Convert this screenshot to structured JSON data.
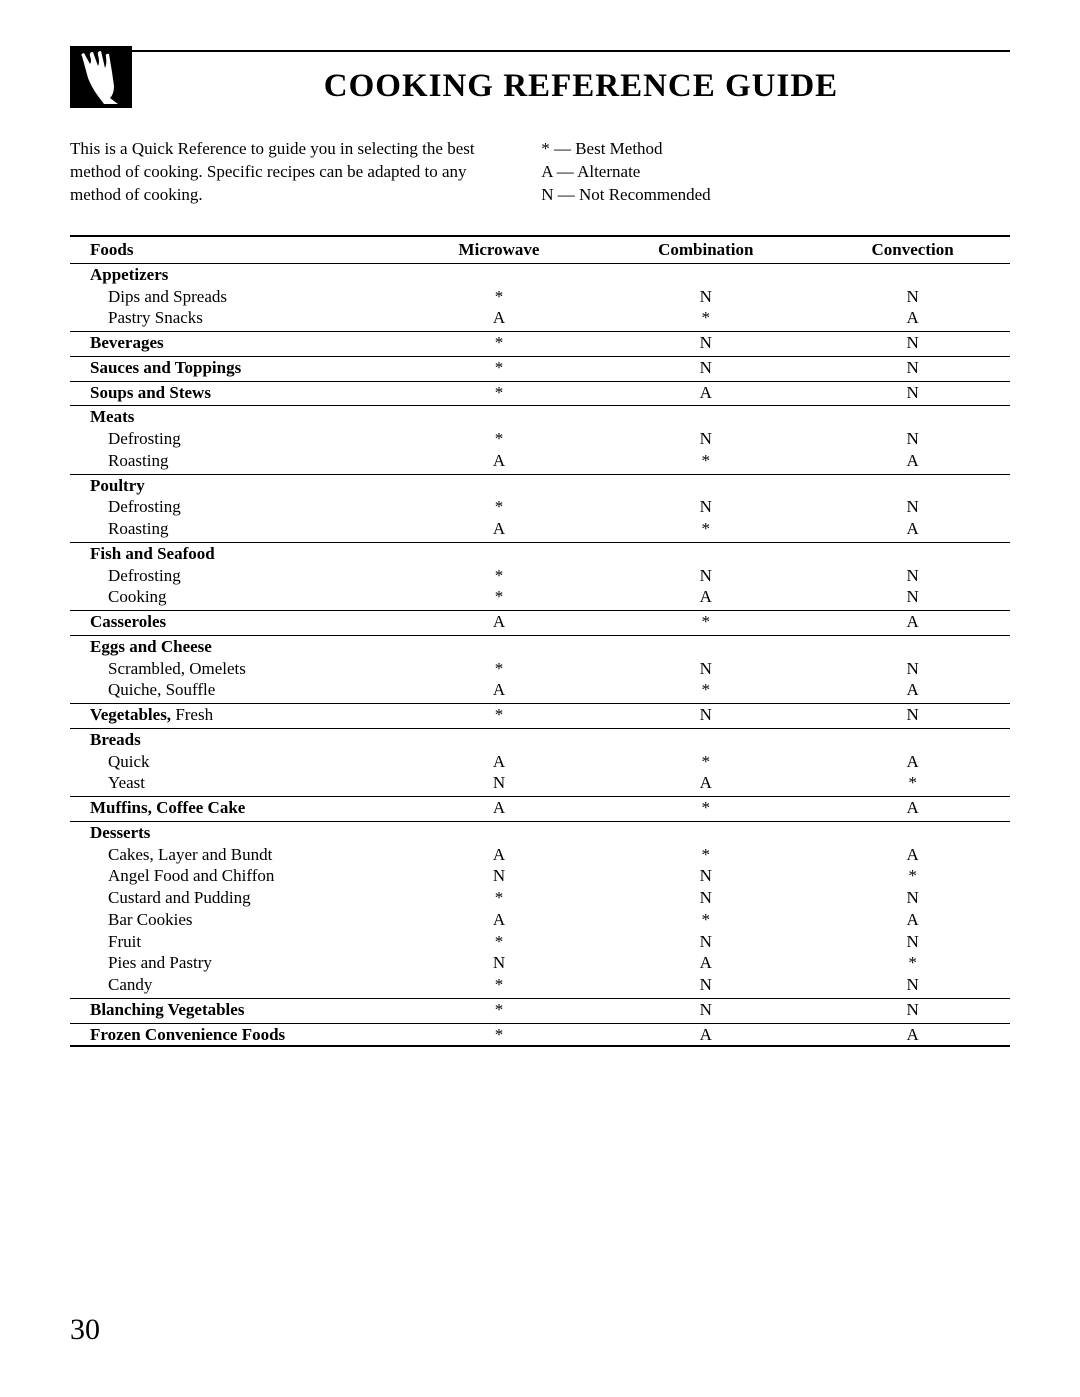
{
  "title": "COOKING REFERENCE GUIDE",
  "intro": "This is a Quick Reference to guide you in selecting the best method of cooking. Specific recipes can be adapted to any method of cooking.",
  "legend": {
    "best": "*  — Best Method",
    "alt": "A — Alternate",
    "notrec": "N — Not Recommended"
  },
  "headers": {
    "foods": "Foods",
    "microwave": "Microwave",
    "combination": "Combination",
    "convection": "Convection"
  },
  "sections": [
    {
      "category": "Appetizers",
      "rows": [
        {
          "label": "Dips and Spreads",
          "mw": "*",
          "cb": "N",
          "cv": "N"
        },
        {
          "label": "Pastry Snacks",
          "mw": "A",
          "cb": "*",
          "cv": "A"
        }
      ]
    },
    {
      "category": "Beverages",
      "inline": true,
      "mw": "*",
      "cb": "N",
      "cv": "N"
    },
    {
      "category": "Sauces and Toppings",
      "inline": true,
      "mw": "*",
      "cb": "N",
      "cv": "N"
    },
    {
      "category": "Soups and Stews",
      "inline": true,
      "mw": "*",
      "cb": "A",
      "cv": "N"
    },
    {
      "category": "Meats",
      "rows": [
        {
          "label": "Defrosting",
          "mw": "*",
          "cb": "N",
          "cv": "N"
        },
        {
          "label": "Roasting",
          "mw": "A",
          "cb": "*",
          "cv": "A"
        }
      ]
    },
    {
      "category": "Poultry",
      "rows": [
        {
          "label": "Defrosting",
          "mw": "*",
          "cb": "N",
          "cv": "N"
        },
        {
          "label": "Roasting",
          "mw": "A",
          "cb": "*",
          "cv": "A"
        }
      ]
    },
    {
      "category": "Fish and Seafood",
      "rows": [
        {
          "label": "Defrosting",
          "mw": "*",
          "cb": "N",
          "cv": "N"
        },
        {
          "label": "Cooking",
          "mw": "*",
          "cb": "A",
          "cv": "N"
        }
      ]
    },
    {
      "category": "Casseroles",
      "inline": true,
      "mw": "A",
      "cb": "*",
      "cv": "A"
    },
    {
      "category": "Eggs and Cheese",
      "rows": [
        {
          "label": "Scrambled, Omelets",
          "mw": "*",
          "cb": "N",
          "cv": "N"
        },
        {
          "label": "Quiche, Souffle",
          "mw": "A",
          "cb": "*",
          "cv": "A"
        }
      ]
    },
    {
      "category": "Vegetables,",
      "trailing": " Fresh",
      "inline": true,
      "mw": "*",
      "cb": "N",
      "cv": "N"
    },
    {
      "category": "Breads",
      "rows": [
        {
          "label": "Quick",
          "mw": "A",
          "cb": "*",
          "cv": "A"
        },
        {
          "label": "Yeast",
          "mw": "N",
          "cb": "A",
          "cv": "*"
        }
      ]
    },
    {
      "category": "Muffins, Coffee Cake",
      "inline": true,
      "mw": "A",
      "cb": "*",
      "cv": "A"
    },
    {
      "category": "Desserts",
      "rows": [
        {
          "label": "Cakes, Layer and Bundt",
          "mw": "A",
          "cb": "*",
          "cv": "A"
        },
        {
          "label": "Angel Food and Chiffon",
          "mw": "N",
          "cb": "N",
          "cv": "*"
        },
        {
          "label": "Custard and Pudding",
          "mw": "*",
          "cb": "N",
          "cv": "N"
        },
        {
          "label": "Bar Cookies",
          "mw": "A",
          "cb": "*",
          "cv": "A"
        },
        {
          "label": "Fruit",
          "mw": "*",
          "cb": "N",
          "cv": "N"
        },
        {
          "label": "Pies and Pastry",
          "mw": "N",
          "cb": "A",
          "cv": "*"
        },
        {
          "label": "Candy",
          "mw": "*",
          "cb": "N",
          "cv": "N"
        }
      ]
    },
    {
      "category": "Blanching Vegetables",
      "inline": true,
      "mw": "*",
      "cb": "N",
      "cv": "N"
    },
    {
      "category": "Frozen Convenience Foods",
      "inline": true,
      "mw": "*",
      "cb": "A",
      "cv": "A",
      "last": true
    }
  ],
  "page_number": "30",
  "colors": {
    "text": "#000000",
    "background": "#ffffff",
    "border": "#000000"
  }
}
